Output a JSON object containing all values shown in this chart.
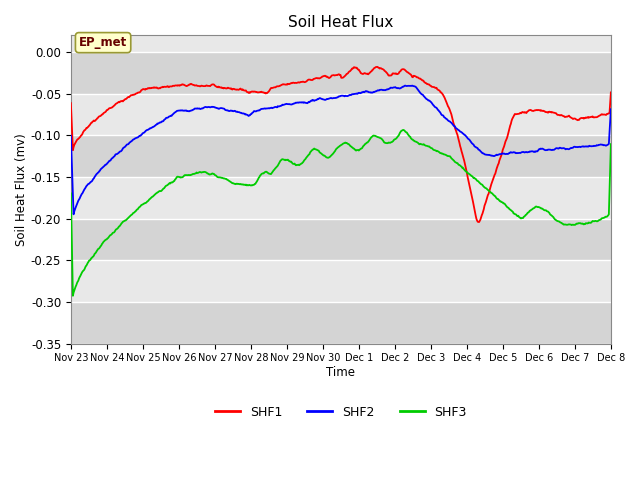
{
  "title": "Soil Heat Flux",
  "xlabel": "Time",
  "ylabel": "Soil Heat Flux (mv)",
  "ylim": [
    -0.35,
    0.02
  ],
  "yticks": [
    0.0,
    -0.05,
    -0.1,
    -0.15,
    -0.2,
    -0.25,
    -0.3,
    -0.35
  ],
  "figure_bg": "#ffffff",
  "plot_bg": "#e8e8e8",
  "band_color_light": "#d8d8d8",
  "band_color_dark": "#e8e8e8",
  "grid_color": "#ffffff",
  "annotation_label": "EP_met",
  "annotation_bg": "#ffffcc",
  "annotation_border": "#999933",
  "line_colors": {
    "SHF1": "#ff0000",
    "SHF2": "#0000ff",
    "SHF3": "#00cc00"
  },
  "tick_labels": [
    "Nov 23",
    "Nov 24",
    "Nov 25",
    "Nov 26",
    "Nov 27",
    "Nov 28",
    "Nov 29",
    "Nov 30",
    "Dec 1",
    "Dec 2",
    "Dec 3",
    "Dec 4",
    "Dec 5",
    "Dec 6",
    "Dec 7",
    "Dec 8"
  ]
}
